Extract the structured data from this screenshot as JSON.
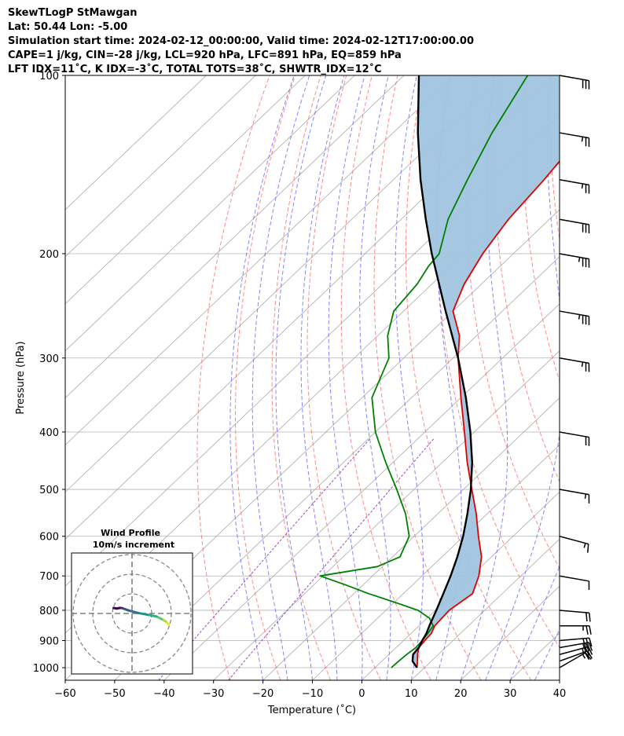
{
  "header": {
    "line1": "SkewTLogP StMawgan",
    "line2": "Lat: 50.44   Lon: -5.00",
    "line3": "Simulation start time: 2024-02-12_00:00:00, Valid time: 2024-02-12T17:00:00.00",
    "line4": "CAPE=1 j/kg, CIN=-28 j/kg, LCL=920 hPa, LFC=891 hPa, EQ=859 hPa",
    "line5": "LFT IDX=11˚C, K IDX=-3˚C, TOTAL TOTS=38˚C, SHWTR_IDX=12˚C"
  },
  "chart_data": {
    "type": "line",
    "subtype": "skew-t log-p",
    "xlabel": "Temperature (˚C)",
    "ylabel": "Pressure (hPa)",
    "xlim": [
      -60,
      40
    ],
    "ylim": [
      1050,
      100
    ],
    "yscale": "log",
    "x_ticks": [
      -60,
      -50,
      -40,
      -30,
      -20,
      -10,
      0,
      10,
      20,
      30,
      40
    ],
    "y_ticks": [
      100,
      200,
      300,
      400,
      500,
      600,
      700,
      800,
      900,
      1000
    ],
    "grid": true,
    "colors": {
      "temperature": "#e00000",
      "dewpoint": "#008000",
      "parcel": "#000000",
      "cape_fill": "#a0c4df",
      "dry_adiabat": "#ff6060",
      "moist_adiabat": "#5b5bff",
      "mixing_ratio": "#9a4ac0",
      "isotherm": "#aaaaaa"
    },
    "series": [
      {
        "key": "temperature",
        "pressure": [
          1000,
          975,
          950,
          925,
          900,
          875,
          850,
          800,
          750,
          700,
          650,
          600,
          550,
          500,
          450,
          400,
          350,
          300,
          275,
          250,
          225,
          200,
          175,
          150,
          125,
          100
        ],
        "temp": [
          8.5,
          7.2,
          5.8,
          4.6,
          4.3,
          4.1,
          3.2,
          2.8,
          4.0,
          1.5,
          -2.0,
          -7.0,
          -12.2,
          -18.3,
          -25.0,
          -32.0,
          -40.0,
          -49.0,
          -53.5,
          -60.0,
          -63.5,
          -66.2,
          -68.3,
          -69.5,
          -71.5,
          -70.0
        ]
      },
      {
        "key": "dewpoint",
        "pressure": [
          1000,
          975,
          950,
          925,
          900,
          875,
          850,
          825,
          800,
          775,
          750,
          725,
          700,
          675,
          650,
          600,
          550,
          500,
          450,
          400,
          350,
          300,
          275,
          250,
          225,
          210,
          200,
          175,
          150,
          125,
          100
        ],
        "temp": [
          3.3,
          3.4,
          3.6,
          4.0,
          3.8,
          3.4,
          2.9,
          0.5,
          -3.5,
          -10.0,
          -17.0,
          -23.5,
          -30.6,
          -21.0,
          -18.5,
          -21.0,
          -26.5,
          -33.5,
          -41.5,
          -50.0,
          -58.0,
          -63.0,
          -68.0,
          -72.0,
          -73.0,
          -74.5,
          -75.0,
          -80.5,
          -85.0,
          -90.0,
          -95.0
        ]
      },
      {
        "key": "parcel",
        "pressure": [
          1000,
          975,
          950,
          925,
          900,
          875,
          850,
          800,
          750,
          700,
          650,
          600,
          550,
          500,
          450,
          400,
          350,
          300,
          250,
          200,
          175,
          150,
          125,
          100
        ],
        "temp": [
          8.5,
          6.2,
          4.9,
          4.6,
          3.8,
          3.1,
          2.1,
          0.2,
          -1.9,
          -4.2,
          -6.9,
          -10.1,
          -14.0,
          -18.5,
          -24.0,
          -30.8,
          -39.0,
          -49.0,
          -61.5,
          -76.5,
          -85.0,
          -94.5,
          -105.0,
          -117.0
        ]
      }
    ],
    "barbs": {
      "units": "kt",
      "pressure": [
        1000,
        975,
        950,
        925,
        900,
        850,
        800,
        700,
        600,
        500,
        400,
        300,
        250,
        200,
        175,
        150,
        125,
        100
      ],
      "speed": [
        15,
        20,
        25,
        30,
        30,
        25,
        20,
        10,
        15,
        15,
        20,
        25,
        35,
        35,
        30,
        25,
        25,
        30
      ],
      "direction": [
        240,
        250,
        255,
        260,
        265,
        270,
        275,
        280,
        285,
        280,
        280,
        280,
        280,
        280,
        280,
        280,
        280,
        280
      ]
    },
    "hodograph": {
      "title": "Wind Profile",
      "subtitle": "10m/s increment",
      "rings": [
        10,
        20,
        30
      ],
      "u": [
        6.0,
        5.5,
        4.8,
        4.0,
        2.5,
        0.9,
        -0.6,
        -1.7,
        -2.0,
        -2.5,
        -3.0
      ],
      "v": [
        -1.8,
        -1.3,
        -0.9,
        -0.5,
        -0.2,
        0.1,
        0.5,
        0.9,
        0.9,
        0.8,
        0.9
      ]
    }
  }
}
